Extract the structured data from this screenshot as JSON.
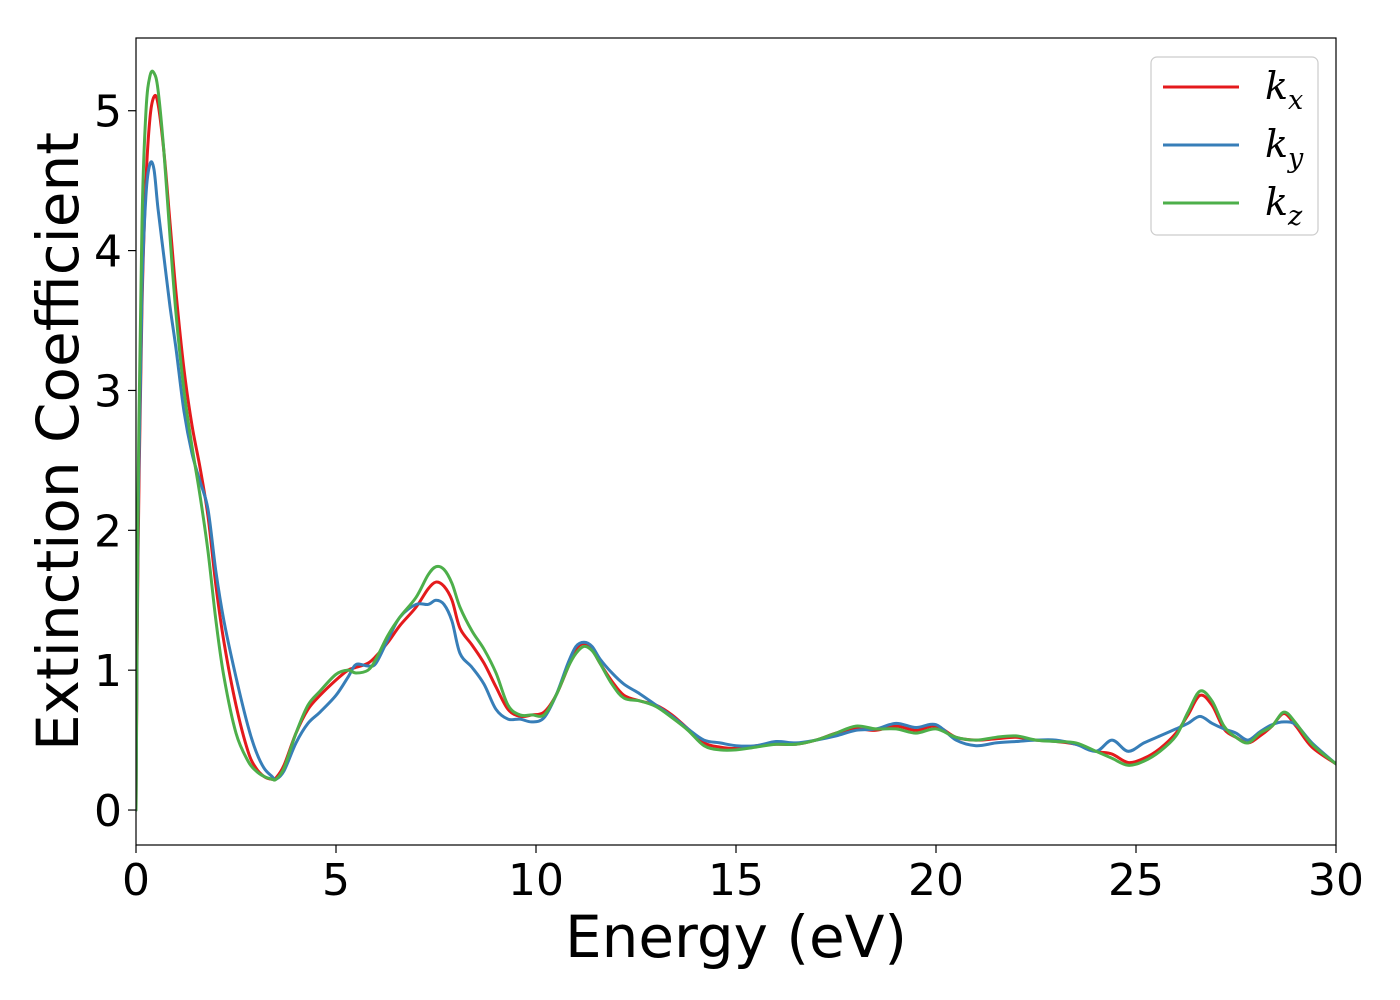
{
  "chart_data": {
    "type": "line",
    "title": "",
    "xlabel": "Energy (eV)",
    "ylabel": "Extinction Coefficient",
    "xlim": [
      0,
      30
    ],
    "ylim": [
      -0.25,
      5.52
    ],
    "xticks": [
      0,
      5,
      10,
      15,
      20,
      25,
      30
    ],
    "yticks": [
      0,
      1,
      2,
      3,
      4,
      5
    ],
    "grid": false,
    "legend_position": "top-right",
    "series": [
      {
        "name": "k",
        "subscript": "x",
        "color": "#e41a1c",
        "x": [
          0,
          0.05,
          0.15,
          0.25,
          0.35,
          0.45,
          0.55,
          0.7,
          0.85,
          1.0,
          1.2,
          1.4,
          1.6,
          1.8,
          2.0,
          2.2,
          2.5,
          2.8,
          3.0,
          3.2,
          3.4,
          3.5,
          3.7,
          4.0,
          4.3,
          4.6,
          5.0,
          5.3,
          5.5,
          5.8,
          6.0,
          6.3,
          6.6,
          7.0,
          7.3,
          7.5,
          7.7,
          7.9,
          8.1,
          8.4,
          8.7,
          9.0,
          9.3,
          9.6,
          9.9,
          10.2,
          10.5,
          10.8,
          11.0,
          11.2,
          11.4,
          11.6,
          11.9,
          12.2,
          12.6,
          13.0,
          13.4,
          13.8,
          14.2,
          14.6,
          15.0,
          15.5,
          16.0,
          16.5,
          17.0,
          17.5,
          18.0,
          18.5,
          19.0,
          19.5,
          20.0,
          20.5,
          21.0,
          21.5,
          22.0,
          22.5,
          23.0,
          23.5,
          24.0,
          24.4,
          24.8,
          25.2,
          25.6,
          26.0,
          26.3,
          26.6,
          26.9,
          27.2,
          27.5,
          27.8,
          28.1,
          28.4,
          28.7,
          29.0,
          29.4,
          30.0
        ],
        "values": [
          0,
          1.8,
          3.6,
          4.5,
          4.95,
          5.1,
          5.05,
          4.7,
          4.2,
          3.7,
          3.15,
          2.75,
          2.45,
          2.1,
          1.6,
          1.2,
          0.75,
          0.42,
          0.3,
          0.24,
          0.22,
          0.23,
          0.32,
          0.55,
          0.72,
          0.82,
          0.93,
          1.0,
          1.02,
          1.05,
          1.1,
          1.2,
          1.32,
          1.45,
          1.58,
          1.63,
          1.6,
          1.5,
          1.3,
          1.18,
          1.05,
          0.88,
          0.72,
          0.67,
          0.68,
          0.7,
          0.82,
          1.02,
          1.15,
          1.19,
          1.15,
          1.05,
          0.92,
          0.82,
          0.78,
          0.75,
          0.68,
          0.58,
          0.48,
          0.45,
          0.44,
          0.46,
          0.47,
          0.47,
          0.5,
          0.55,
          0.58,
          0.57,
          0.6,
          0.57,
          0.6,
          0.52,
          0.5,
          0.51,
          0.52,
          0.5,
          0.49,
          0.47,
          0.42,
          0.4,
          0.34,
          0.37,
          0.44,
          0.55,
          0.68,
          0.82,
          0.75,
          0.58,
          0.52,
          0.48,
          0.53,
          0.6,
          0.69,
          0.6,
          0.45,
          0.33
        ]
      },
      {
        "name": "k",
        "subscript": "y",
        "color": "#377eb8",
        "x": [
          0,
          0.05,
          0.15,
          0.25,
          0.35,
          0.45,
          0.55,
          0.7,
          0.85,
          1.0,
          1.2,
          1.4,
          1.6,
          1.8,
          2.0,
          2.2,
          2.5,
          2.8,
          3.0,
          3.2,
          3.4,
          3.5,
          3.7,
          4.0,
          4.3,
          4.6,
          5.0,
          5.3,
          5.5,
          5.8,
          6.0,
          6.3,
          6.6,
          7.0,
          7.3,
          7.5,
          7.7,
          7.9,
          8.1,
          8.4,
          8.7,
          9.0,
          9.3,
          9.6,
          9.9,
          10.2,
          10.5,
          10.8,
          11.0,
          11.2,
          11.4,
          11.6,
          11.9,
          12.2,
          12.6,
          13.0,
          13.4,
          13.8,
          14.2,
          14.6,
          15.0,
          15.5,
          16.0,
          16.5,
          17.0,
          17.5,
          18.0,
          18.5,
          19.0,
          19.5,
          20.0,
          20.5,
          21.0,
          21.5,
          22.0,
          22.5,
          23.0,
          23.5,
          24.0,
          24.4,
          24.8,
          25.2,
          25.6,
          26.0,
          26.3,
          26.6,
          26.9,
          27.2,
          27.5,
          27.8,
          28.1,
          28.4,
          28.7,
          29.0,
          29.4,
          30.0
        ],
        "values": [
          0,
          2.0,
          3.7,
          4.4,
          4.62,
          4.58,
          4.3,
          3.95,
          3.6,
          3.3,
          2.85,
          2.55,
          2.35,
          2.15,
          1.7,
          1.35,
          0.95,
          0.6,
          0.42,
          0.3,
          0.24,
          0.22,
          0.28,
          0.48,
          0.62,
          0.7,
          0.82,
          0.95,
          1.04,
          1.03,
          1.05,
          1.22,
          1.38,
          1.47,
          1.47,
          1.5,
          1.47,
          1.35,
          1.12,
          1.02,
          0.9,
          0.72,
          0.65,
          0.65,
          0.63,
          0.66,
          0.82,
          1.05,
          1.17,
          1.2,
          1.17,
          1.08,
          0.98,
          0.9,
          0.83,
          0.75,
          0.67,
          0.58,
          0.5,
          0.48,
          0.46,
          0.46,
          0.49,
          0.48,
          0.5,
          0.53,
          0.57,
          0.58,
          0.62,
          0.59,
          0.61,
          0.5,
          0.46,
          0.48,
          0.49,
          0.5,
          0.5,
          0.47,
          0.42,
          0.5,
          0.42,
          0.48,
          0.53,
          0.58,
          0.62,
          0.67,
          0.62,
          0.58,
          0.55,
          0.5,
          0.56,
          0.61,
          0.63,
          0.61,
          0.48,
          0.33
        ]
      },
      {
        "name": "k",
        "subscript": "z",
        "color": "#4daf4a",
        "x": [
          0,
          0.05,
          0.15,
          0.25,
          0.35,
          0.45,
          0.55,
          0.7,
          0.85,
          1.0,
          1.2,
          1.4,
          1.6,
          1.8,
          2.0,
          2.2,
          2.5,
          2.8,
          3.0,
          3.2,
          3.4,
          3.5,
          3.7,
          4.0,
          4.3,
          4.6,
          5.0,
          5.3,
          5.5,
          5.8,
          6.0,
          6.3,
          6.6,
          7.0,
          7.3,
          7.5,
          7.7,
          7.9,
          8.1,
          8.4,
          8.7,
          9.0,
          9.3,
          9.6,
          9.9,
          10.2,
          10.5,
          10.8,
          11.0,
          11.2,
          11.4,
          11.6,
          11.9,
          12.2,
          12.6,
          13.0,
          13.4,
          13.8,
          14.2,
          14.6,
          15.0,
          15.5,
          16.0,
          16.5,
          17.0,
          17.5,
          18.0,
          18.5,
          19.0,
          19.5,
          20.0,
          20.5,
          21.0,
          21.5,
          22.0,
          22.5,
          23.0,
          23.5,
          24.0,
          24.4,
          24.8,
          25.2,
          25.6,
          26.0,
          26.3,
          26.6,
          26.9,
          27.2,
          27.5,
          27.8,
          28.1,
          28.4,
          28.7,
          29.0,
          29.4,
          30.0
        ],
        "values": [
          0,
          2.2,
          4.2,
          5.0,
          5.25,
          5.27,
          5.15,
          4.7,
          4.1,
          3.55,
          3.0,
          2.6,
          2.25,
          1.85,
          1.35,
          0.95,
          0.55,
          0.35,
          0.28,
          0.24,
          0.22,
          0.22,
          0.3,
          0.55,
          0.75,
          0.85,
          0.97,
          1.0,
          0.98,
          1.0,
          1.08,
          1.25,
          1.38,
          1.52,
          1.68,
          1.74,
          1.72,
          1.62,
          1.45,
          1.28,
          1.15,
          0.98,
          0.75,
          0.68,
          0.68,
          0.68,
          0.82,
          1.02,
          1.12,
          1.17,
          1.14,
          1.05,
          0.9,
          0.8,
          0.78,
          0.74,
          0.66,
          0.57,
          0.46,
          0.43,
          0.43,
          0.45,
          0.47,
          0.47,
          0.5,
          0.55,
          0.6,
          0.58,
          0.58,
          0.55,
          0.58,
          0.52,
          0.5,
          0.52,
          0.53,
          0.5,
          0.49,
          0.48,
          0.42,
          0.37,
          0.32,
          0.35,
          0.42,
          0.53,
          0.7,
          0.85,
          0.78,
          0.6,
          0.52,
          0.48,
          0.55,
          0.6,
          0.7,
          0.62,
          0.47,
          0.33
        ]
      }
    ]
  }
}
